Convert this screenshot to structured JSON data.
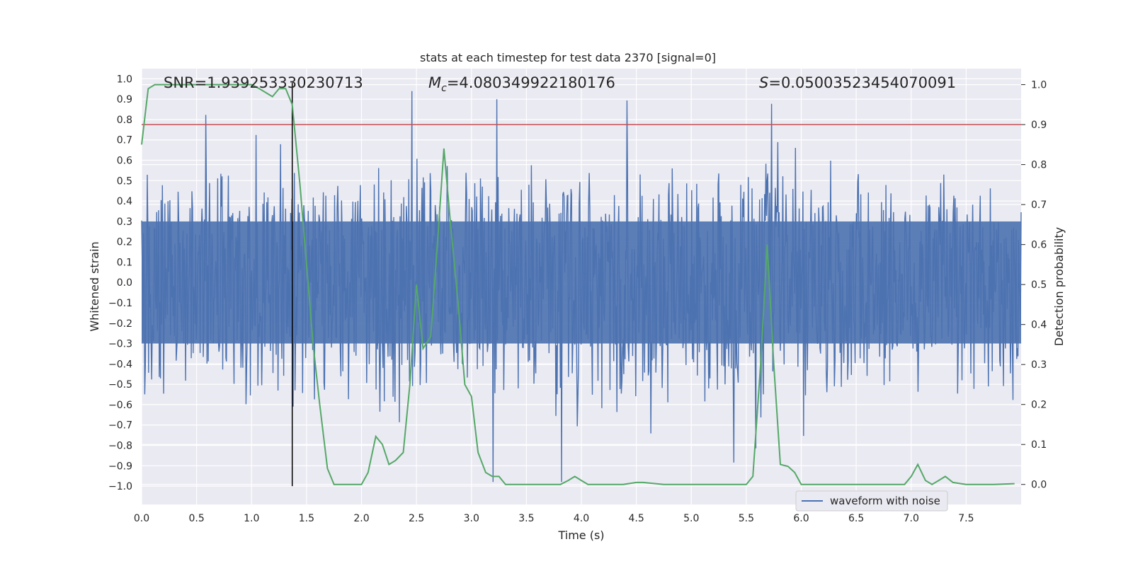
{
  "chart_data": {
    "type": "line",
    "title": "stats at each timestep for test data 2370 [signal=0]",
    "xlabel": "Time (s)",
    "ylabel_left": "Whitened strain",
    "ylabel_right": "Detection probability",
    "xlim": [
      0.0,
      8.0
    ],
    "ylim_left": [
      -1.09,
      1.05
    ],
    "ylim_right": [
      -0.05,
      1.04
    ],
    "x_ticks": [
      "0.0",
      "0.5",
      "1.0",
      "1.5",
      "2.0",
      "2.5",
      "3.0",
      "3.5",
      "4.0",
      "4.5",
      "5.0",
      "5.5",
      "6.0",
      "6.5",
      "7.0",
      "7.5"
    ],
    "y_left_ticks": [
      "1.0",
      "0.9",
      "0.8",
      "0.7",
      "0.6",
      "0.5",
      "0.4",
      "0.3",
      "0.2",
      "0.1",
      "0.0",
      "-0.1",
      "-0.2",
      "-0.3",
      "-0.4",
      "-0.5",
      "-0.6",
      "-0.7",
      "-0.8",
      "-0.9",
      "-1.0"
    ],
    "y_right_ticks": [
      "1.0",
      "0.9",
      "0.8",
      "0.7",
      "0.6",
      "0.5",
      "0.4",
      "0.3",
      "0.2",
      "0.1",
      "0.0"
    ],
    "annotations": {
      "snr": "SNR=1.939253330230713",
      "mc_symbol": "M",
      "mc_sub": "c",
      "mc_value": "=4.080349922180176",
      "s_symbol": "S",
      "s_value": "=0.05003523454070091"
    },
    "threshold_line": {
      "value": 0.9,
      "axis": "right",
      "color": "#c44e52"
    },
    "vertical_marker": {
      "x": 1.37,
      "color": "#000000"
    },
    "series": [
      {
        "name": "waveform with noise",
        "axis": "left",
        "color": "#4c72b0",
        "envelope": "dense noise, typical amplitude 0.3-0.6, peaks up to about 0.95 / -1.0"
      },
      {
        "name": "detection probability",
        "axis": "right",
        "color": "#55a868",
        "x": [
          0.0,
          0.06,
          0.12,
          0.25,
          0.5,
          0.75,
          1.0,
          1.07,
          1.13,
          1.19,
          1.25,
          1.31,
          1.37,
          1.44,
          1.5,
          1.56,
          1.62,
          1.69,
          1.75,
          1.81,
          1.88,
          1.94,
          2.0,
          2.06,
          2.13,
          2.19,
          2.25,
          2.31,
          2.38,
          2.44,
          2.5,
          2.56,
          2.63,
          2.69,
          2.75,
          2.81,
          2.88,
          2.94,
          3.0,
          3.06,
          3.13,
          3.19,
          3.25,
          3.31,
          3.38,
          3.5,
          3.63,
          3.75,
          3.81,
          3.88,
          3.94,
          4.0,
          4.06,
          4.13,
          4.25,
          4.38,
          4.5,
          4.56,
          4.75,
          5.0,
          5.25,
          5.5,
          5.56,
          5.63,
          5.69,
          5.75,
          5.81,
          5.88,
          5.94,
          6.0,
          6.06,
          6.25,
          6.5,
          6.75,
          6.94,
          7.0,
          7.06,
          7.13,
          7.19,
          7.25,
          7.31,
          7.38,
          7.5,
          7.75,
          7.94
        ],
        "values": [
          0.85,
          0.99,
          1.0,
          1.0,
          1.0,
          1.0,
          1.0,
          0.99,
          0.98,
          0.97,
          0.99,
          0.99,
          0.95,
          0.75,
          0.55,
          0.35,
          0.2,
          0.04,
          0.0,
          0.0,
          0.0,
          0.0,
          0.0,
          0.03,
          0.12,
          0.1,
          0.05,
          0.06,
          0.08,
          0.25,
          0.5,
          0.34,
          0.37,
          0.6,
          0.84,
          0.65,
          0.45,
          0.25,
          0.22,
          0.08,
          0.03,
          0.02,
          0.02,
          0.0,
          0.0,
          0.0,
          0.0,
          0.0,
          0.0,
          0.01,
          0.02,
          0.01,
          0.0,
          0.0,
          0.0,
          0.0,
          0.005,
          0.005,
          0.0,
          0.0,
          0.0,
          0.0,
          0.02,
          0.3,
          0.6,
          0.3,
          0.05,
          0.045,
          0.03,
          0.0,
          0.0,
          0.0,
          0.0,
          0.0,
          0.0,
          0.02,
          0.05,
          0.01,
          0.0,
          0.01,
          0.02,
          0.005,
          0.0,
          0.0,
          0.002
        ]
      }
    ],
    "legend": {
      "label": "waveform with noise",
      "placement": "bottom-right"
    }
  }
}
